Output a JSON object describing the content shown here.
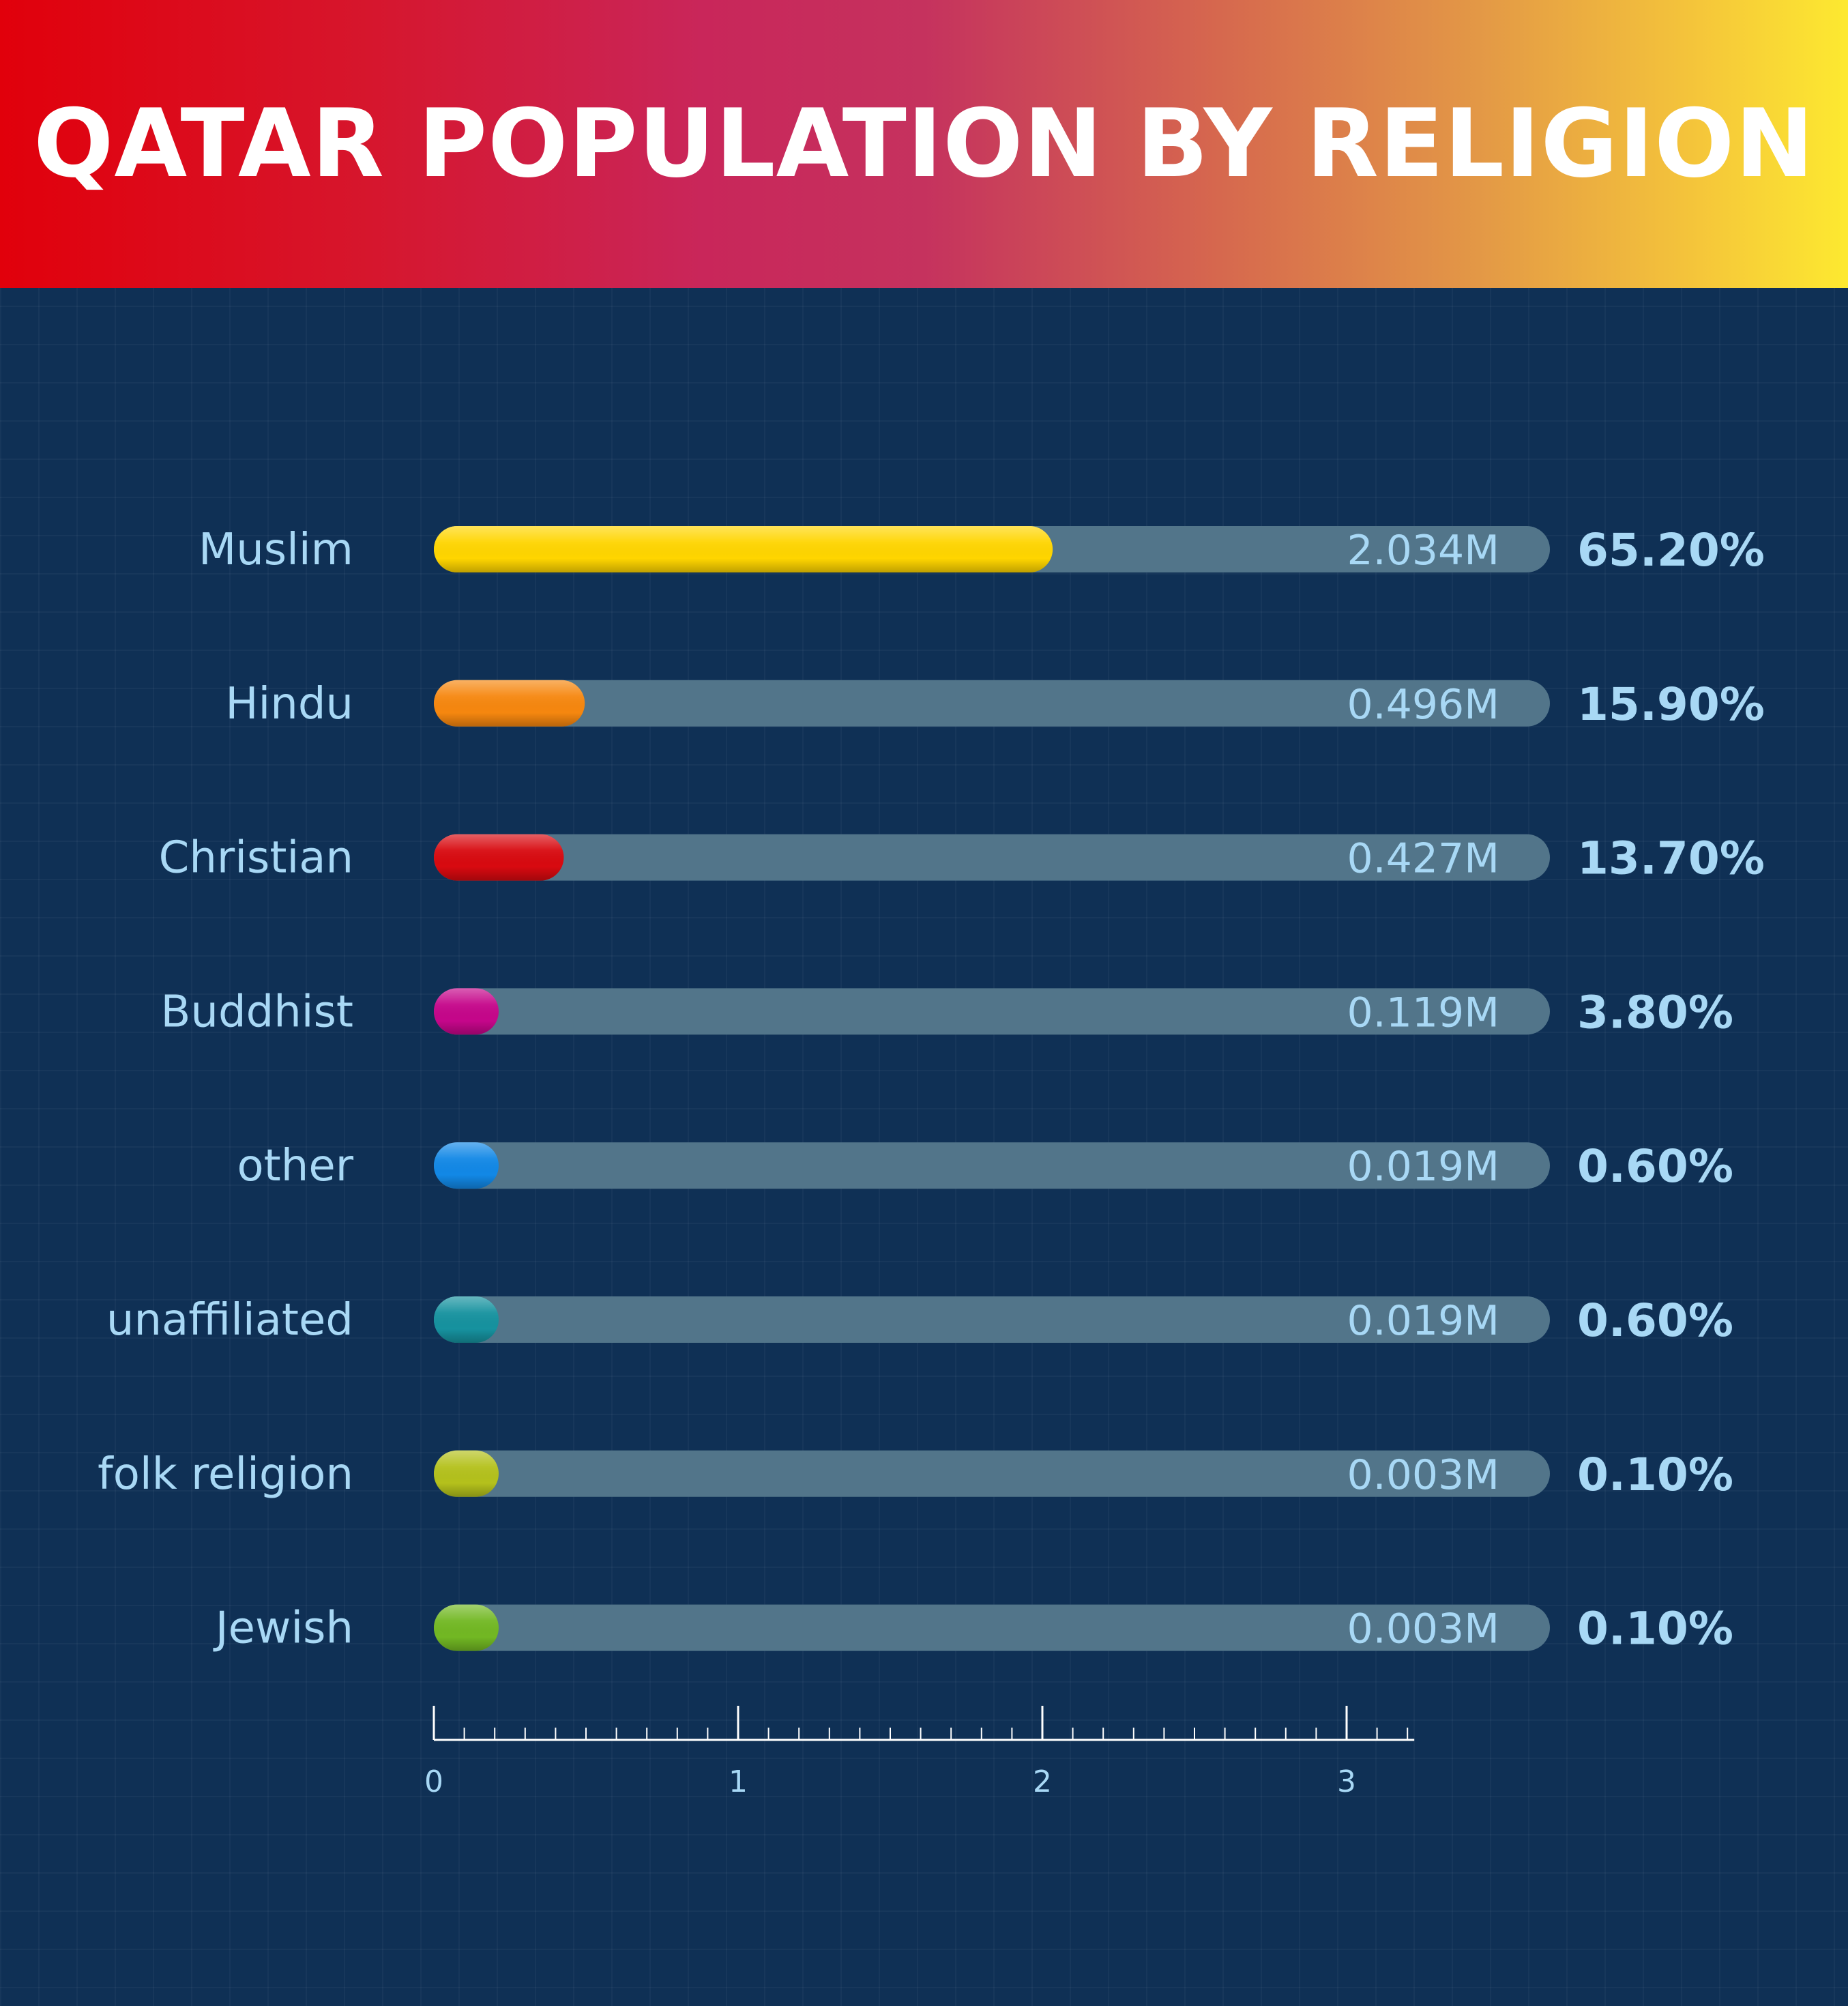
{
  "header": {
    "title": "QATAR POPULATION BY RELIGION"
  },
  "colors": {
    "background": "#0f3055",
    "track": "#52758a",
    "label_text": "#a8d8f5",
    "axis": "#ffffff"
  },
  "chart_data": {
    "type": "bar",
    "orientation": "horizontal",
    "title": "QATAR POPULATION BY RELIGION",
    "xlim": [
      0,
      3.2
    ],
    "ticks": [
      "0",
      "1",
      "2",
      "3"
    ],
    "tick_values": [
      0,
      1,
      2,
      3
    ],
    "minor_tick_step": 0.1,
    "categories": [
      "Muslim",
      "Hindu",
      "Christian",
      "Buddhist",
      "other",
      "unaffiliated",
      "folk religion",
      "Jewish"
    ],
    "values": [
      2.034,
      0.496,
      0.427,
      0.119,
      0.019,
      0.019,
      0.003,
      0.003
    ],
    "value_labels": [
      "2.034M",
      "0.496M",
      "0.427M",
      "0.119M",
      "0.019M",
      "0.019M",
      "0.003M",
      "0.003M"
    ],
    "percent_labels": [
      "65.20%",
      "15.90%",
      "13.70%",
      "3.80%",
      "0.60%",
      "0.60%",
      "0.10%",
      "0.10%"
    ],
    "bar_colors": [
      "#ffd500",
      "#f6870f",
      "#d80a10",
      "#c5068a",
      "#1288e6",
      "#16929f",
      "#b4c11c",
      "#72b823"
    ],
    "grid": true
  }
}
